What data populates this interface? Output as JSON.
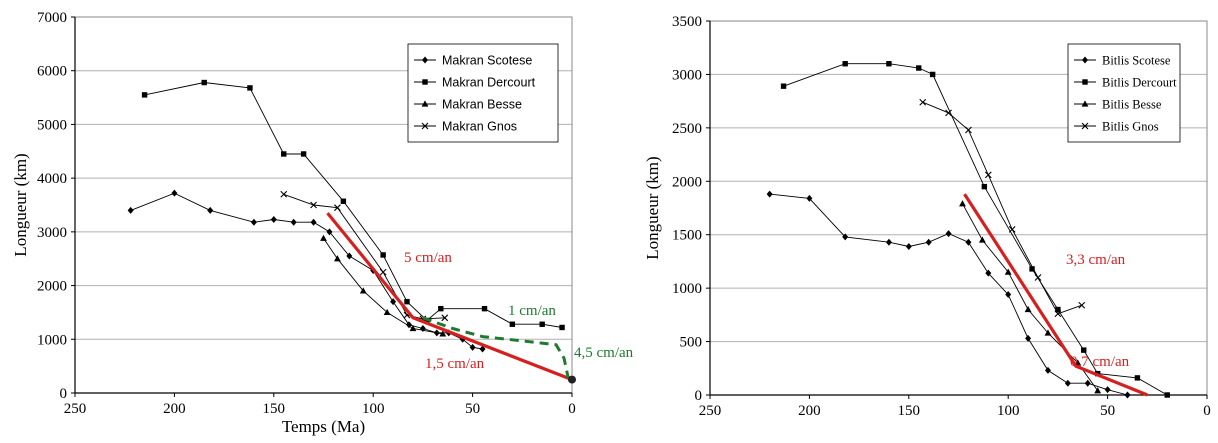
{
  "colors": {
    "series_line": "#000000",
    "grid": "#b0b0b0",
    "trend_red": "#d62020",
    "trend_green": "#1f7a2e"
  },
  "chart_data": [
    {
      "type": "line",
      "xlabel": "Temps (Ma)",
      "ylabel": "Longueur (km)",
      "xlim": [
        250,
        0
      ],
      "ylim": [
        0,
        7000
      ],
      "xticks": [
        "250",
        "200",
        "150",
        "100",
        "50",
        "0"
      ],
      "yticks": [
        "0",
        "1000",
        "2000",
        "3000",
        "4000",
        "5000",
        "6000",
        "7000"
      ],
      "grid": "horizontal",
      "legend_position": "top-right",
      "series": [
        {
          "name": "Makran Scotese",
          "marker": "diamond",
          "points": [
            [
              222,
              3400
            ],
            [
              200,
              3720
            ],
            [
              182,
              3400
            ],
            [
              160,
              3180
            ],
            [
              150,
              3230
            ],
            [
              140,
              3180
            ],
            [
              130,
              3180
            ],
            [
              122,
              3000
            ],
            [
              112,
              2550
            ],
            [
              100,
              2280
            ],
            [
              90,
              1700
            ],
            [
              82,
              1270
            ],
            [
              75,
              1200
            ],
            [
              68,
              1120
            ],
            [
              62,
              1120
            ],
            [
              55,
              1000
            ],
            [
              50,
              850
            ],
            [
              45,
              820
            ]
          ]
        },
        {
          "name": "Makran Dercourt",
          "marker": "square",
          "points": [
            [
              215,
              5550
            ],
            [
              185,
              5780
            ],
            [
              162,
              5680
            ],
            [
              145,
              4450
            ],
            [
              135,
              4450
            ],
            [
              115,
              3570
            ],
            [
              95,
              2570
            ],
            [
              83,
              1700
            ],
            [
              73,
              1350
            ],
            [
              66,
              1570
            ],
            [
              44,
              1570
            ],
            [
              30,
              1280
            ],
            [
              15,
              1280
            ],
            [
              5,
              1220
            ]
          ]
        },
        {
          "name": "Makran Besse",
          "marker": "triangle",
          "points": [
            [
              125,
              2880
            ],
            [
              118,
              2500
            ],
            [
              105,
              1900
            ],
            [
              93,
              1500
            ],
            [
              80,
              1200
            ],
            [
              65,
              1100
            ]
          ]
        },
        {
          "name": "Makran Gnos",
          "marker": "x",
          "points": [
            [
              145,
              3700
            ],
            [
              130,
              3500
            ],
            [
              118,
              3450
            ],
            [
              95,
              2250
            ],
            [
              83,
              1450
            ],
            [
              75,
              1380
            ],
            [
              64,
              1400
            ]
          ]
        }
      ],
      "trend_lines": [
        {
          "color": "red",
          "points": [
            [
              123,
              3350
            ],
            [
              80,
              1400
            ],
            [
              0,
              250
            ]
          ]
        },
        {
          "color": "green",
          "dashed": true,
          "points": [
            [
              75,
              1400
            ],
            [
              60,
              1200
            ],
            [
              45,
              1050
            ],
            [
              20,
              950
            ],
            [
              8,
              900
            ],
            [
              4,
              650
            ],
            [
              2,
              300
            ],
            [
              0,
              250
            ]
          ]
        }
      ],
      "endpoint": {
        "x": 0,
        "y": 250
      },
      "annotations": [
        {
          "text": "5 cm/an",
          "color": "red"
        },
        {
          "text": "1 cm/an",
          "color": "green"
        },
        {
          "text": "4,5 cm/an",
          "color": "green"
        },
        {
          "text": "1,5 cm/an",
          "color": "red"
        }
      ]
    },
    {
      "type": "line",
      "xlabel": "",
      "ylabel": "Longueur (km)",
      "xlim": [
        250,
        0
      ],
      "ylim": [
        0,
        3500
      ],
      "xticks": [
        "250",
        "200",
        "150",
        "100",
        "50",
        "0"
      ],
      "yticks": [
        "0",
        "500",
        "1000",
        "1500",
        "2000",
        "2500",
        "3000",
        "3500"
      ],
      "grid": "horizontal",
      "legend_position": "top-right",
      "series": [
        {
          "name": "Bitlis Scotese",
          "marker": "diamond",
          "points": [
            [
              220,
              1880
            ],
            [
              200,
              1840
            ],
            [
              182,
              1480
            ],
            [
              160,
              1430
            ],
            [
              150,
              1390
            ],
            [
              140,
              1430
            ],
            [
              130,
              1510
            ],
            [
              120,
              1430
            ],
            [
              110,
              1140
            ],
            [
              100,
              940
            ],
            [
              90,
              530
            ],
            [
              80,
              230
            ],
            [
              70,
              110
            ],
            [
              60,
              110
            ],
            [
              50,
              50
            ],
            [
              40,
              0
            ]
          ]
        },
        {
          "name": "Bitlis Dercourt",
          "marker": "square",
          "points": [
            [
              213,
              2890
            ],
            [
              182,
              3100
            ],
            [
              160,
              3100
            ],
            [
              145,
              3060
            ],
            [
              138,
              3000
            ],
            [
              112,
              1950
            ],
            [
              88,
              1180
            ],
            [
              75,
              800
            ],
            [
              62,
              420
            ],
            [
              55,
              200
            ],
            [
              35,
              160
            ],
            [
              20,
              0
            ]
          ]
        },
        {
          "name": "Bitlis Besse",
          "marker": "triangle",
          "points": [
            [
              123,
              1790
            ],
            [
              113,
              1450
            ],
            [
              100,
              1150
            ],
            [
              90,
              800
            ],
            [
              80,
              580
            ],
            [
              65,
              300
            ],
            [
              55,
              40
            ]
          ]
        },
        {
          "name": "Bitlis Gnos",
          "marker": "x",
          "points": [
            [
              143,
              2740
            ],
            [
              130,
              2640
            ],
            [
              120,
              2480
            ],
            [
              110,
              2060
            ],
            [
              98,
              1550
            ],
            [
              85,
              1100
            ],
            [
              75,
              760
            ],
            [
              63,
              840
            ]
          ]
        }
      ],
      "trend_lines": [
        {
          "color": "red",
          "points": [
            [
              122,
              1880
            ],
            [
              66,
              270
            ],
            [
              30,
              0
            ]
          ]
        }
      ],
      "annotations": [
        {
          "text": "3,3 cm/an",
          "color": "red"
        },
        {
          "text": "0,7 cm/an",
          "color": "red"
        }
      ]
    }
  ]
}
